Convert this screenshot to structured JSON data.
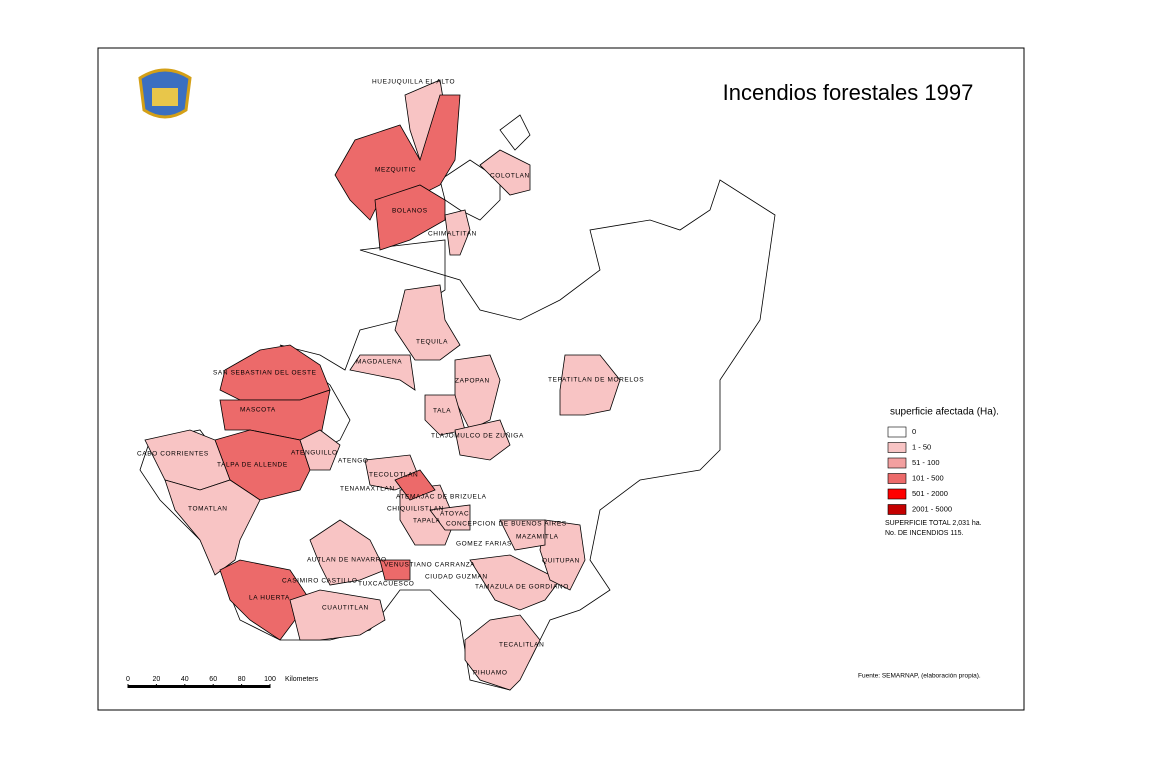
{
  "title": "Incendios forestales 1997",
  "legend": {
    "title": "superficie afectada (Ha).",
    "items": [
      {
        "label": "0",
        "color": "#ffffff"
      },
      {
        "label": "1 - 50",
        "color": "#f8c4c4"
      },
      {
        "label": "51 - 100",
        "color": "#f3a0a0"
      },
      {
        "label": "101 - 500",
        "color": "#ec6a6a"
      },
      {
        "label": "501 - 2000",
        "color": "#ff0000"
      },
      {
        "label": "2001 - 5000",
        "color": "#c40000"
      }
    ],
    "notes": [
      "SUPERFICIE TOTAL 2,031 ha.",
      "No. DE INCENDIOS 115."
    ]
  },
  "source": "Fuente: SEMARNAP, (elaboración propia).",
  "scale_bar": {
    "ticks": [
      0,
      20,
      40,
      60,
      80,
      100
    ],
    "unit": "Kilometers"
  },
  "map_labels": [
    "HUEJUQUILLA EL ALTO",
    "MEZQUITIC",
    "COLOTLAN",
    "BOLANOS",
    "CHIMALTITAN",
    "TEQUILA",
    "MAGDALENA",
    "SAN SEBASTIAN DEL OESTE",
    "ZAPOPAN",
    "TEPATITLAN DE MORELOS",
    "MASCOTA",
    "TALA",
    "TLAJOMULCO DE ZUÑIGA",
    "CABO CORRIENTES",
    "ATENGUILLO",
    "TALPA DE ALLENDE",
    "ATENGO",
    "TECOLOTLAN",
    "TENAMAXTLAN",
    "ATEMAJAC DE BRIZUELA",
    "CHIQUILISTLAN",
    "TOMATLAN",
    "ATOYAC",
    "TAPALA",
    "CONCEPCION DE BUENOS AIRES",
    "MAZAMITLA",
    "GOMEZ FARIAS",
    "QUITUPAN",
    "AUTLAN DE NAVARRO",
    "VENUSTIANO CARRANZA",
    "CASIMIRO CASTILLO",
    "TUXCACUESCO",
    "CIUDAD GUZMAN",
    "TAMAZULA DE GORDIANO",
    "LA HUERTA",
    "CUAUTITLAN",
    "TECALITLAN",
    "PIHUAMO"
  ]
}
